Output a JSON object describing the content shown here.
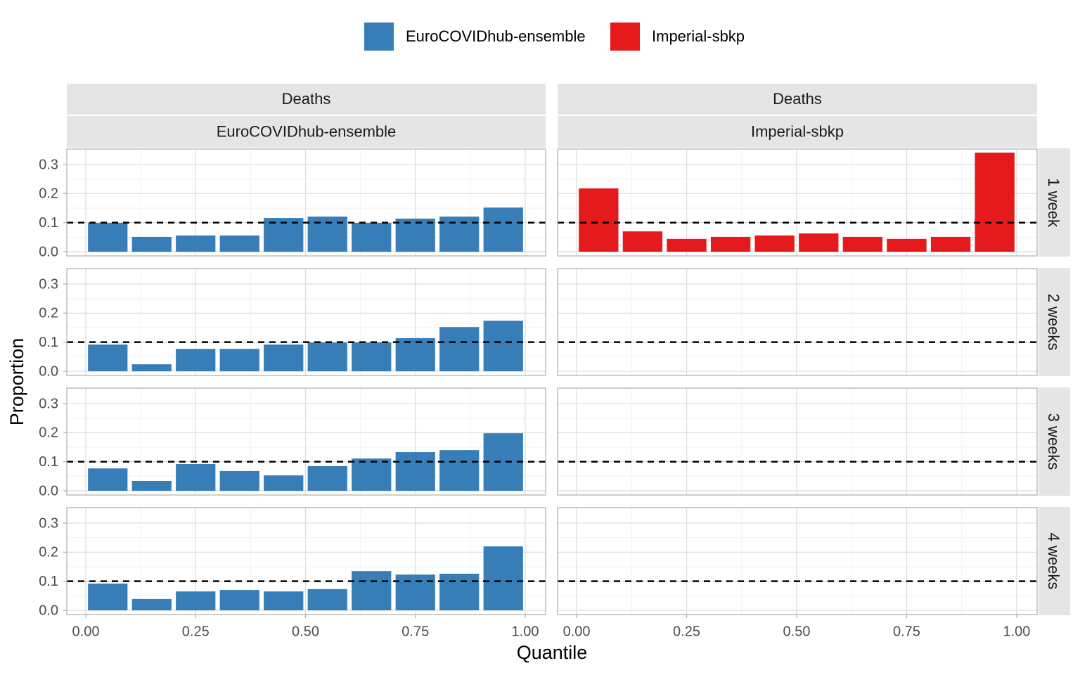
{
  "chart_data": {
    "type": "histogram",
    "xlabel": "Quantile",
    "ylabel": "Proportion",
    "bins": [
      0,
      0.1,
      0.2,
      0.3,
      0.4,
      0.5,
      0.6,
      0.7,
      0.8,
      0.9,
      1.0
    ],
    "xlim": [
      -0.0432,
      1.0464
    ],
    "xticks": [
      {
        "value": 0,
        "label": "0.00"
      },
      {
        "value": 0.25,
        "label": "0.25"
      },
      {
        "value": 0.5,
        "label": "0.50"
      },
      {
        "value": 0.75,
        "label": "0.75"
      },
      {
        "value": 1,
        "label": "1.00"
      }
    ],
    "ylim": [
      -0.0145,
      0.3533
    ],
    "yticks": [
      {
        "value": 0,
        "label": "0.0"
      },
      0.1,
      0.2,
      0.3
    ],
    "reference_line": 0.1,
    "grid": true,
    "legend": "top",
    "column_strips": [
      [
        "Deaths",
        "EuroCOVIDhub-ensemble"
      ],
      [
        "Deaths",
        "Imperial-sbkp"
      ]
    ],
    "row_strips": [
      "1 week",
      "2 weeks",
      "3 weeks",
      "4 weeks"
    ],
    "series": [
      {
        "name": "EuroCOVIDhub-ensemble",
        "color": "#377eb8",
        "values": [
          [
            0.099,
            0.051,
            0.056,
            0.056,
            0.116,
            0.121,
            0.099,
            0.114,
            0.121,
            0.152
          ],
          [
            0.092,
            0.024,
            0.077,
            0.077,
            0.092,
            0.099,
            0.099,
            0.114,
            0.152,
            0.174
          ],
          [
            0.077,
            0.034,
            0.092,
            0.068,
            0.053,
            0.085,
            0.111,
            0.133,
            0.14,
            0.198
          ],
          [
            0.092,
            0.039,
            0.065,
            0.07,
            0.065,
            0.073,
            0.135,
            0.123,
            0.126,
            0.22
          ]
        ]
      },
      {
        "name": "Imperial-sbkp",
        "color": "#e41a1c",
        "values": [
          [
            0.218,
            0.07,
            0.044,
            0.051,
            0.056,
            0.063,
            0.051,
            0.044,
            0.051,
            0.341
          ],
          null,
          null,
          null
        ]
      }
    ]
  }
}
